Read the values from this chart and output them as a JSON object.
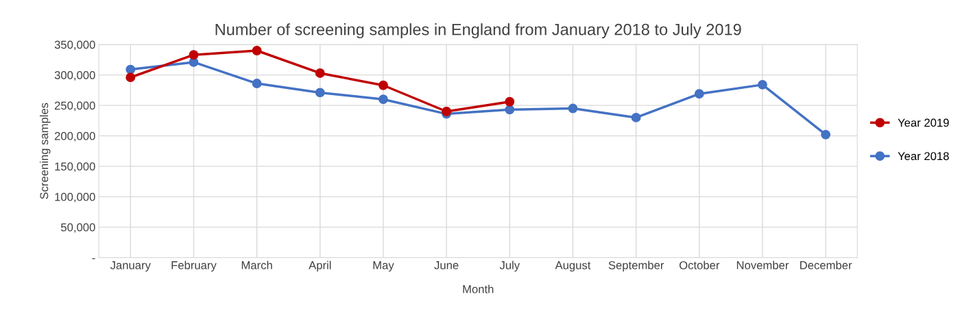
{
  "chart_data": {
    "type": "line",
    "title": "Number of screening samples in England from January 2018 to July 2019",
    "xlabel": "Month",
    "ylabel": "Screening samples",
    "categories": [
      "January",
      "February",
      "March",
      "April",
      "May",
      "June",
      "July",
      "August",
      "September",
      "October",
      "November",
      "December"
    ],
    "series": [
      {
        "name": "Year 2019",
        "color": "#c00000",
        "values": [
          296000,
          333000,
          340000,
          303000,
          283000,
          240000,
          256000,
          null,
          null,
          null,
          null,
          null
        ]
      },
      {
        "name": "Year 2018",
        "color": "#4472c4",
        "values": [
          309000,
          321000,
          286000,
          271000,
          260000,
          236000,
          243000,
          245000,
          230000,
          269000,
          284000,
          202000
        ]
      }
    ],
    "ylim": [
      0,
      350000
    ],
    "yticks": [
      {
        "value": 0,
        "label": "-"
      },
      {
        "value": 50000,
        "label": "50,000"
      },
      {
        "value": 100000,
        "label": "100,000"
      },
      {
        "value": 150000,
        "label": "150,000"
      },
      {
        "value": 200000,
        "label": "200,000"
      },
      {
        "value": 250000,
        "label": "250,000"
      },
      {
        "value": 300000,
        "label": "300,000"
      },
      {
        "value": 350000,
        "label": "350,000"
      }
    ],
    "grid": true,
    "legend": "right",
    "marker": "circle",
    "line_style": "solid"
  }
}
